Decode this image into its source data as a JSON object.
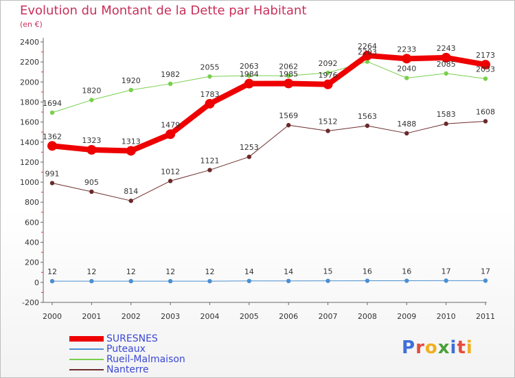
{
  "header": {
    "title": "Evolution du Montant de la Dette par Habitant",
    "unit": "(en €)"
  },
  "logo": {
    "letters": [
      "P",
      "r",
      "o",
      "x",
      "i",
      "t",
      "i"
    ],
    "colors": [
      "#3f6fd8",
      "#e84a3c",
      "#f0b020",
      "#4aa03a",
      "#3f6fd8",
      "#e84a3c",
      "#f0b020"
    ]
  },
  "chart_data": {
    "type": "line",
    "title": "Evolution du Montant de la Dette par Habitant",
    "ylabel": "(en €)",
    "x": [
      "2000",
      "2001",
      "2002",
      "2003",
      "2004",
      "2005",
      "2006",
      "2007",
      "2008",
      "2009",
      "2010",
      "2011"
    ],
    "ylim": [
      -200,
      2400
    ],
    "yticks": [
      -200,
      0,
      200,
      400,
      600,
      800,
      1000,
      1200,
      1400,
      1600,
      1800,
      2000,
      2200,
      2400
    ],
    "grid": false,
    "legend": "bottom-left",
    "series": [
      {
        "name": "SURESNES",
        "color": "#ee0000",
        "values": [
          1362,
          1323,
          1313,
          1479,
          1783,
          1984,
          1985,
          1976,
          2264,
          2233,
          2243,
          2173
        ]
      },
      {
        "name": "Puteaux",
        "color": "#4a8fd0",
        "values": [
          12,
          12,
          12,
          12,
          12,
          14,
          14,
          15,
          16,
          16,
          17,
          17
        ]
      },
      {
        "name": "Rueil-Malmaison",
        "color": "#79cf4d",
        "values": [
          1694,
          1820,
          1920,
          1982,
          2055,
          2063,
          2062,
          2092,
          2203,
          2040,
          2085,
          2033
        ]
      },
      {
        "name": "Nanterre",
        "color": "#6b2a2a",
        "values": [
          991,
          905,
          814,
          1012,
          1121,
          1253,
          1569,
          1512,
          1563,
          1488,
          1583,
          1608
        ]
      }
    ]
  }
}
